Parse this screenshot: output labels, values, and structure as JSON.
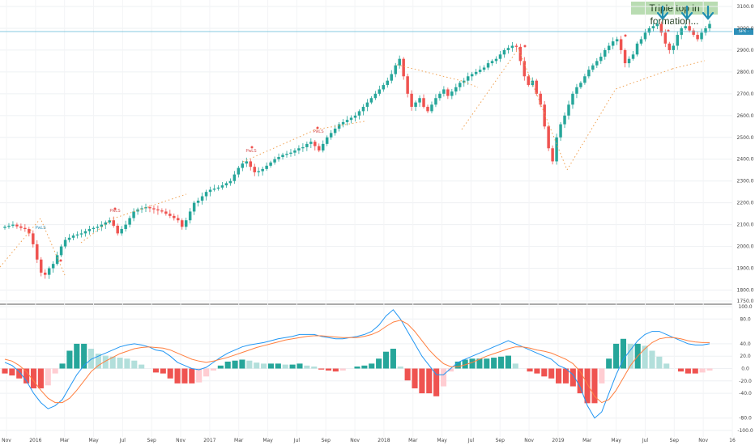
{
  "annotation": {
    "text": "Triple top in formation..."
  },
  "price_tag": {
    "text": "SPX · 3023.4"
  },
  "colors": {
    "up": "#26a69a",
    "down": "#ef5350",
    "macd": "#2196f3",
    "signal": "#ff7f3f",
    "hist_pos": "#26a69a",
    "hist_pos_light": "#b2dfdb",
    "hist_neg": "#ef5350",
    "hist_neg_light": "#ffcdd2",
    "hline": "#5bb8d6",
    "arrow": "#1f8fb0",
    "dots": "#f0a050"
  },
  "chart_data": [
    {
      "type": "candlestick",
      "title": "",
      "ylim": [
        1750,
        3100
      ],
      "price_ticks": [
        "3100.0",
        "3000.0",
        "2900.0",
        "2800.0",
        "2700.0",
        "2600.0",
        "2500.0",
        "2400.0",
        "2300.0",
        "2200.0",
        "2100.0",
        "2000.0",
        "1900.0",
        "1800.0",
        "1750.0"
      ],
      "x_ticks": [
        "Nov",
        "2016",
        "Mar",
        "May",
        "Jul",
        "Sep",
        "Nov",
        "2017",
        "Mar",
        "May",
        "Jul",
        "Sep",
        "Nov",
        "2018",
        "Mar",
        "May",
        "Jul",
        "Sep",
        "Nov",
        "2019",
        "Mar",
        "May",
        "Jul",
        "Sep",
        "Nov",
        "16"
      ],
      "close_weekly": [
        2090,
        2095,
        2100,
        2092,
        2085,
        2080,
        2060,
        2010,
        1940,
        1880,
        1870,
        1900,
        1920,
        1960,
        2000,
        2030,
        2040,
        2050,
        2055,
        2060,
        2070,
        2080,
        2085,
        2090,
        2100,
        2110,
        2120,
        2095,
        2060,
        2080,
        2100,
        2130,
        2160,
        2170,
        2175,
        2180,
        2175,
        2170,
        2165,
        2160,
        2150,
        2140,
        2130,
        2120,
        2090,
        2120,
        2160,
        2200,
        2210,
        2230,
        2250,
        2260,
        2265,
        2270,
        2280,
        2290,
        2300,
        2330,
        2360,
        2380,
        2390,
        2365,
        2340,
        2345,
        2355,
        2370,
        2385,
        2400,
        2410,
        2420,
        2425,
        2430,
        2440,
        2450,
        2455,
        2470,
        2480,
        2460,
        2440,
        2470,
        2500,
        2520,
        2540,
        2560,
        2570,
        2580,
        2590,
        2600,
        2620,
        2640,
        2660,
        2680,
        2700,
        2720,
        2740,
        2760,
        2790,
        2830,
        2860,
        2780,
        2700,
        2640,
        2660,
        2680,
        2640,
        2620,
        2650,
        2680,
        2700,
        2720,
        2690,
        2710,
        2730,
        2750,
        2760,
        2780,
        2790,
        2800,
        2810,
        2820,
        2840,
        2850,
        2860,
        2880,
        2900,
        2910,
        2920,
        2915,
        2850,
        2780,
        2740,
        2760,
        2700,
        2650,
        2550,
        2450,
        2390,
        2500,
        2560,
        2600,
        2650,
        2700,
        2730,
        2750,
        2780,
        2810,
        2830,
        2850,
        2870,
        2900,
        2920,
        2940,
        2950,
        2900,
        2840,
        2860,
        2880,
        2930,
        2950,
        2980,
        3000,
        3010,
        3020,
        2980,
        2930,
        2900,
        2920,
        2970,
        3000,
        3010,
        2990,
        2970,
        2950,
        2980,
        3000,
        3020
      ],
      "events": [
        {
          "label": "PwLS",
          "side": "below"
        },
        {
          "label": "PwLS",
          "side": "above"
        },
        {
          "label": "PwLS",
          "side": "above"
        },
        {
          "label": "PwLS",
          "side": "above"
        }
      ]
    },
    {
      "type": "macd",
      "ylim": [
        -100,
        100
      ],
      "ticks": [
        "100.0",
        "80.0",
        "40.0",
        "20.0",
        "0.0",
        "-20.0",
        "-40.0",
        "-80.0",
        "-100.0"
      ],
      "series": [
        {
          "name": "",
          "values": [
            10,
            5,
            -5,
            -20,
            -40,
            -55,
            -65,
            -60,
            -50,
            -30,
            -10,
            5,
            15,
            20,
            25,
            30,
            35,
            38,
            40,
            38,
            35,
            30,
            28,
            20,
            10,
            5,
            0,
            -2,
            2,
            10,
            18,
            25,
            30,
            35,
            38,
            40,
            42,
            45,
            48,
            50,
            52,
            55,
            55,
            55,
            52,
            50,
            48,
            48,
            50,
            52,
            55,
            60,
            70,
            85,
            95,
            80,
            60,
            40,
            20,
            5,
            -10,
            -10,
            0,
            10,
            15,
            20,
            25,
            30,
            35,
            40,
            45,
            40,
            35,
            30,
            25,
            20,
            15,
            5,
            0,
            -10,
            -30,
            -60,
            -80,
            -70,
            -40,
            -10,
            15,
            30,
            45,
            55,
            60,
            60,
            55,
            50,
            45,
            40,
            38,
            38,
            40
          ]
        },
        {
          "name": "",
          "values": [
            15,
            12,
            5,
            -5,
            -20,
            -35,
            -48,
            -55,
            -55,
            -48,
            -35,
            -20,
            -5,
            5,
            12,
            18,
            24,
            28,
            32,
            34,
            35,
            34,
            33,
            30,
            25,
            20,
            15,
            12,
            10,
            12,
            15,
            18,
            22,
            26,
            30,
            34,
            37,
            40,
            43,
            46,
            48,
            50,
            52,
            53,
            53,
            52,
            51,
            50,
            50,
            50,
            52,
            55,
            60,
            68,
            75,
            78,
            72,
            60,
            45,
            30,
            18,
            8,
            3,
            3,
            6,
            10,
            15,
            20,
            24,
            28,
            32,
            35,
            35,
            33,
            30,
            28,
            25,
            20,
            15,
            8,
            -5,
            -25,
            -45,
            -55,
            -50,
            -35,
            -15,
            5,
            20,
            32,
            42,
            48,
            50,
            50,
            48,
            45,
            43,
            42,
            42
          ]
        }
      ]
    }
  ]
}
